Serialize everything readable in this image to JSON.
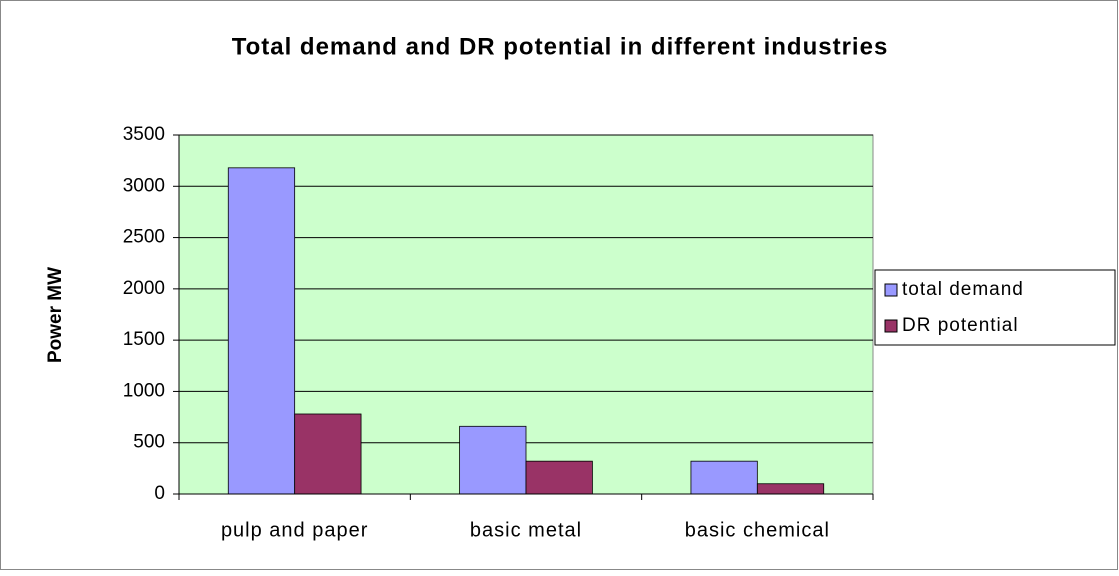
{
  "chart_data": {
    "type": "bar",
    "title": "Total demand and DR potential in different industries",
    "ylabel": "Power MW",
    "categories": [
      "pulp and paper",
      "basic metal",
      "basic chemical"
    ],
    "series": [
      {
        "name": "total demand",
        "color": "#9999ff",
        "values": [
          3180,
          660,
          320
        ]
      },
      {
        "name": "DR potential",
        "color": "#993366",
        "values": [
          780,
          320,
          100
        ]
      }
    ],
    "ylim": [
      0,
      3500
    ],
    "yticks": [
      0,
      500,
      1000,
      1500,
      2000,
      2500,
      3000,
      3500
    ],
    "grid": true,
    "legend": "right"
  }
}
